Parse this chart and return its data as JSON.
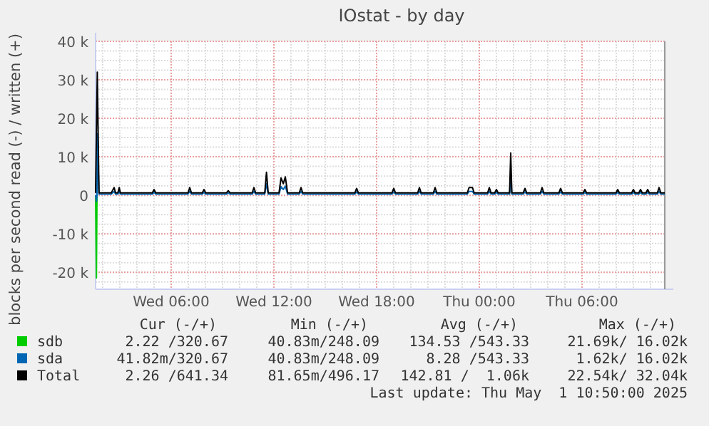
{
  "chart_data": {
    "type": "line",
    "title": "IOstat - by day",
    "ylabel": "blocks per second read (-) / written (+)",
    "xlim": [
      "2025-04-30T01:35",
      "2025-05-01T10:50"
    ],
    "xticks": [
      {
        "value": "2025-04-30T06:00",
        "label": "Wed 06:00"
      },
      {
        "value": "2025-04-30T12:00",
        "label": "Wed 12:00"
      },
      {
        "value": "2025-04-30T18:00",
        "label": "Wed 18:00"
      },
      {
        "value": "2025-05-01T00:00",
        "label": "Thu 00:00"
      },
      {
        "value": "2025-05-01T06:00",
        "label": "Thu 06:00"
      }
    ],
    "ylim": [
      -24400,
      40000
    ],
    "yticks": [
      {
        "value": -20000,
        "label": "-20 k"
      },
      {
        "value": -10000,
        "label": "-10 k"
      },
      0,
      {
        "value": 10000,
        "label": "10 k"
      },
      {
        "value": 20000,
        "label": "20 k"
      },
      {
        "value": 30000,
        "label": "30 k"
      },
      {
        "value": 40000,
        "label": "40 k"
      }
    ],
    "grid": true,
    "legend": "bottom",
    "line_style": "solid",
    "x": [
      "2025-04-30T01:35",
      "2025-04-30T01:41",
      "2025-04-30T01:47",
      "2025-04-30T02:30",
      "2025-04-30T02:40",
      "2025-04-30T02:45",
      "2025-04-30T02:53",
      "2025-04-30T02:58",
      "2025-04-30T03:02",
      "2025-04-30T04:54",
      "2025-04-30T05:00",
      "2025-04-30T05:06",
      "2025-04-30T06:59",
      "2025-04-30T07:05",
      "2025-04-30T07:11",
      "2025-04-30T07:49",
      "2025-04-30T07:55",
      "2025-04-30T08:01",
      "2025-04-30T09:14",
      "2025-04-30T09:20",
      "2025-04-30T09:26",
      "2025-04-30T10:44",
      "2025-04-30T10:50",
      "2025-04-30T10:56",
      "2025-04-30T11:28",
      "2025-04-30T11:34",
      "2025-04-30T11:40",
      "2025-04-30T12:18",
      "2025-04-30T12:25",
      "2025-04-30T12:33",
      "2025-04-30T12:40",
      "2025-04-30T12:48",
      "2025-04-30T13:29",
      "2025-04-30T13:35",
      "2025-04-30T13:41",
      "2025-04-30T16:44",
      "2025-04-30T16:50",
      "2025-04-30T16:56",
      "2025-04-30T18:54",
      "2025-04-30T19:00",
      "2025-04-30T19:06",
      "2025-04-30T20:24",
      "2025-04-30T20:30",
      "2025-04-30T20:36",
      "2025-04-30T21:19",
      "2025-04-30T21:25",
      "2025-04-30T21:31",
      "2025-04-30T23:18",
      "2025-04-30T23:24",
      "2025-04-30T23:36",
      "2025-04-30T23:42",
      "2025-05-01T00:29",
      "2025-05-01T00:35",
      "2025-05-01T00:41",
      "2025-05-01T00:54",
      "2025-05-01T01:00",
      "2025-05-01T01:06",
      "2025-05-01T01:46",
      "2025-05-01T01:50",
      "2025-05-01T01:54",
      "2025-05-01T02:34",
      "2025-05-01T02:40",
      "2025-05-01T02:46",
      "2025-05-01T03:34",
      "2025-05-01T03:40",
      "2025-05-01T03:46",
      "2025-05-01T04:39",
      "2025-05-01T04:45",
      "2025-05-01T04:51",
      "2025-05-01T06:04",
      "2025-05-01T06:10",
      "2025-05-01T06:16",
      "2025-05-01T07:59",
      "2025-05-01T08:05",
      "2025-05-01T08:11",
      "2025-05-01T08:54",
      "2025-05-01T09:00",
      "2025-05-01T09:06",
      "2025-05-01T09:19",
      "2025-05-01T09:25",
      "2025-05-01T09:31",
      "2025-05-01T09:44",
      "2025-05-01T09:50",
      "2025-05-01T09:56",
      "2025-05-01T10:24",
      "2025-05-01T10:30",
      "2025-05-01T10:36",
      "2025-05-01T10:50"
    ],
    "series": [
      {
        "name": "sdb",
        "color": "#00cc00",
        "x": [
          "2025-04-30T01:35",
          "2025-04-30T01:38",
          "2025-04-30T01:40"
        ],
        "values": [
          0,
          -21500,
          0
        ]
      },
      {
        "name": "sda",
        "color": "#0066b3",
        "x": [
          "2025-04-30T01:35",
          "2025-04-30T01:38",
          "2025-04-30T01:40",
          "2025-04-30T01:41",
          "2025-04-30T01:47",
          "2025-04-30T02:30",
          "2025-04-30T02:40",
          "2025-04-30T02:45",
          "2025-04-30T02:53",
          "2025-04-30T02:58",
          "2025-04-30T03:02",
          "2025-04-30T04:54",
          "2025-04-30T05:00",
          "2025-04-30T05:06",
          "2025-04-30T06:59",
          "2025-04-30T07:05",
          "2025-04-30T07:11",
          "2025-04-30T07:49",
          "2025-04-30T07:55",
          "2025-04-30T08:01",
          "2025-04-30T09:14",
          "2025-04-30T09:20",
          "2025-04-30T09:26",
          "2025-04-30T10:44",
          "2025-04-30T10:50",
          "2025-04-30T10:56",
          "2025-04-30T11:28",
          "2025-04-30T11:34",
          "2025-04-30T11:40",
          "2025-04-30T12:18",
          "2025-04-30T12:25",
          "2025-04-30T12:33",
          "2025-04-30T12:40",
          "2025-04-30T12:48",
          "2025-04-30T13:29",
          "2025-04-30T13:35",
          "2025-04-30T13:41",
          "2025-04-30T16:44",
          "2025-04-30T16:50",
          "2025-04-30T16:56",
          "2025-04-30T18:54",
          "2025-04-30T19:00",
          "2025-04-30T19:06",
          "2025-04-30T20:24",
          "2025-04-30T20:30",
          "2025-04-30T20:36",
          "2025-04-30T21:19",
          "2025-04-30T21:25",
          "2025-04-30T21:31",
          "2025-04-30T23:18",
          "2025-04-30T23:24",
          "2025-04-30T23:36",
          "2025-04-30T23:42",
          "2025-05-01T00:29",
          "2025-05-01T00:35",
          "2025-05-01T00:41",
          "2025-05-01T00:54",
          "2025-05-01T01:00",
          "2025-05-01T01:06",
          "2025-05-01T01:46",
          "2025-05-01T01:50",
          "2025-05-01T01:54",
          "2025-05-01T02:34",
          "2025-05-01T02:40",
          "2025-05-01T02:46",
          "2025-05-01T03:34",
          "2025-05-01T03:40",
          "2025-05-01T03:46",
          "2025-05-01T04:39",
          "2025-05-01T04:45",
          "2025-05-01T04:51",
          "2025-05-01T06:04",
          "2025-05-01T06:10",
          "2025-05-01T06:16",
          "2025-05-01T07:59",
          "2025-05-01T08:05",
          "2025-05-01T08:11",
          "2025-05-01T08:54",
          "2025-05-01T09:00",
          "2025-05-01T09:06",
          "2025-05-01T09:19",
          "2025-05-01T09:25",
          "2025-05-01T09:31",
          "2025-05-01T09:44",
          "2025-05-01T09:50",
          "2025-05-01T09:56",
          "2025-05-01T10:24",
          "2025-05-01T10:30",
          "2025-05-01T10:36",
          "2025-05-01T10:50"
        ],
        "values": [
          0,
          -1600,
          0,
          16000,
          320,
          320,
          1000,
          320,
          320,
          1000,
          320,
          320,
          750,
          320,
          320,
          1000,
          320,
          320,
          750,
          320,
          320,
          600,
          320,
          320,
          1000,
          320,
          320,
          3000,
          320,
          320,
          2250,
          1500,
          2400,
          320,
          320,
          1000,
          320,
          320,
          900,
          320,
          320,
          900,
          320,
          320,
          1000,
          320,
          320,
          1000,
          320,
          320,
          1000,
          1000,
          320,
          320,
          1000,
          320,
          320,
          750,
          320,
          320,
          5500,
          320,
          320,
          900,
          320,
          320,
          1000,
          320,
          320,
          900,
          320,
          320,
          750,
          320,
          320,
          750,
          320,
          320,
          750,
          320,
          320,
          750,
          320,
          320,
          750,
          320,
          320,
          1000,
          320,
          320
        ]
      },
      {
        "name": "Total",
        "color": "#000000",
        "values": [
          640,
          32000,
          640,
          640,
          2000,
          640,
          640,
          2000,
          640,
          640,
          1500,
          640,
          640,
          2000,
          640,
          640,
          1500,
          640,
          640,
          1200,
          640,
          640,
          2000,
          640,
          640,
          6000,
          640,
          640,
          4500,
          3000,
          4800,
          640,
          640,
          2000,
          640,
          640,
          1800,
          640,
          640,
          1800,
          640,
          640,
          2000,
          640,
          640,
          2000,
          640,
          640,
          2000,
          2000,
          640,
          640,
          2000,
          640,
          640,
          1500,
          640,
          640,
          11000,
          640,
          640,
          1800,
          640,
          640,
          2000,
          640,
          640,
          1800,
          640,
          640,
          1500,
          640,
          640,
          1500,
          640,
          640,
          1500,
          640,
          640,
          1500,
          640,
          640,
          1500,
          640,
          640,
          2000,
          640,
          640
        ]
      }
    ],
    "annotations": [
      "Cur (-/+)",
      "Min (-/+)",
      "Avg (-/+)",
      "Max (-/+)",
      "2.22 /320.67",
      "40.83m/248.09",
      "134.53 /543.33",
      "21.69k/ 16.02k",
      "41.82m/320.67",
      "40.83m/248.09",
      "8.28 /543.33",
      "1.62k/ 16.02k",
      "2.26 /641.34",
      "81.65m/496.17",
      "142.81 /  1.06k",
      "22.54k/ 32.04k",
      "Last update: Thu May  1 10:50:00 2025"
    ]
  }
}
